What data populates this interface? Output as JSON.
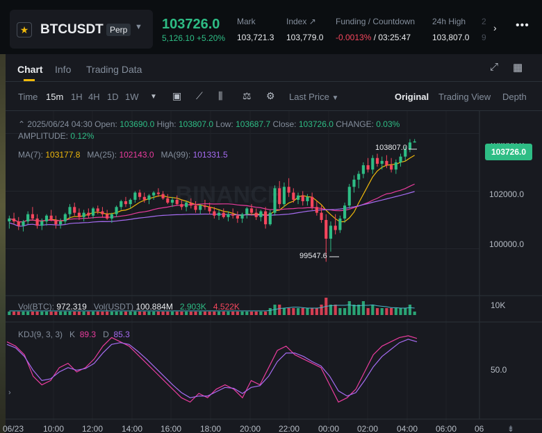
{
  "header": {
    "symbol": "BTCUSDT",
    "contract_type": "Perp",
    "last_price": "103726.0",
    "change": "5,126.10 +5.20%",
    "stats": [
      {
        "label": "Mark",
        "value": "103,721.3"
      },
      {
        "label": "Index ↗",
        "value": "103,779.0"
      },
      {
        "label": "Funding / Countdown",
        "value_funding": "-0.0013%",
        "value_countdown": "/ 03:25:47"
      },
      {
        "label": "24h High",
        "value": "103,807.0"
      }
    ],
    "truncated_stat_label": "2",
    "truncated_stat_value": "9"
  },
  "tabs": [
    "Chart",
    "Info",
    "Trading Data"
  ],
  "toolbar": {
    "time_label": "Time",
    "intervals": [
      "15m",
      "1H",
      "4H",
      "1D",
      "1W"
    ],
    "active_interval": "15m",
    "price_type": "Last Price",
    "views": [
      "Original",
      "Trading View",
      "Depth"
    ],
    "active_view": "Original"
  },
  "ohlc": {
    "datetime": "2025/06/24 04:30",
    "open_label": "Open:",
    "open": "103690.0",
    "high_label": "High:",
    "high": "103807.0",
    "low_label": "Low:",
    "low": "103687.7",
    "close_label": "Close:",
    "close": "103726.0",
    "change_label": "CHANGE:",
    "change": "0.03%",
    "amplitude_label": "AMPLITUDE:",
    "amplitude": "0.12%"
  },
  "ma": {
    "ma7_label": "MA(7):",
    "ma7": "103177.8",
    "ma25_label": "MA(25):",
    "ma25": "102143.0",
    "ma99_label": "MA(99):",
    "ma99": "101331.5"
  },
  "volume": {
    "btc_label": "Vol(BTC):",
    "btc": "972.319",
    "usdt_label": "Vol(USDT)",
    "usdt": "100.884M",
    "v1": "2.903K",
    "v2": "4.522K",
    "axis": "10K"
  },
  "kdj": {
    "label": "KDJ(9, 3, 3)",
    "k_label": "K",
    "k": "89.3",
    "d_label": "D",
    "d": "85.3",
    "axis": "50.0"
  },
  "price_axis": [
    "104000.0",
    "102000.0",
    "100000.0"
  ],
  "current_price_tag": "103726.0",
  "high_marker": "103807.0",
  "low_marker": "99547.6",
  "time_axis": [
    "06/23",
    "10:00",
    "12:00",
    "14:00",
    "16:00",
    "18:00",
    "20:00",
    "22:00",
    "00:00",
    "02:00",
    "04:00",
    "06:00",
    "06"
  ],
  "watermark": "BINANCE",
  "colors": {
    "up": "#2ebd85",
    "down": "#f6465d",
    "ma7": "#f0b90b",
    "ma25": "#ea3c9e",
    "ma99": "#a66cf2",
    "accent": "#f0b90b"
  },
  "chart_data": {
    "type": "candlestick",
    "interval": "15m",
    "ylim": [
      99000,
      104300
    ],
    "candles": [
      [
        100950,
        101150,
        100700,
        101050
      ],
      [
        101050,
        101250,
        100850,
        100950
      ],
      [
        100950,
        101100,
        100650,
        100800
      ],
      [
        100800,
        101000,
        100600,
        100950
      ],
      [
        100950,
        101300,
        100850,
        101200
      ],
      [
        101200,
        101450,
        101000,
        101050
      ],
      [
        101050,
        101200,
        100700,
        100800
      ],
      [
        100800,
        101050,
        100650,
        100950
      ],
      [
        100950,
        101200,
        100800,
        101150
      ],
      [
        101150,
        101350,
        100950,
        101000
      ],
      [
        101000,
        101150,
        100700,
        100850
      ],
      [
        100850,
        101050,
        100700,
        100950
      ],
      [
        100950,
        101250,
        100850,
        101200
      ],
      [
        101200,
        101550,
        101050,
        101450
      ],
      [
        101450,
        101600,
        101150,
        101250
      ],
      [
        101250,
        101400,
        101000,
        101100
      ],
      [
        101100,
        101350,
        100950,
        101250
      ],
      [
        101250,
        101400,
        101050,
        101150
      ],
      [
        101150,
        101450,
        101050,
        101400
      ],
      [
        101400,
        101500,
        101200,
        101300
      ],
      [
        101300,
        101450,
        101100,
        101200
      ],
      [
        101200,
        101350,
        101000,
        101050
      ],
      [
        101050,
        101250,
        100900,
        101200
      ],
      [
        101200,
        101500,
        101100,
        101450
      ],
      [
        101450,
        101700,
        101350,
        101650
      ],
      [
        101650,
        101800,
        101450,
        101550
      ],
      [
        101550,
        101750,
        101400,
        101700
      ],
      [
        101700,
        102000,
        101600,
        101950
      ],
      [
        101950,
        102050,
        101700,
        101800
      ],
      [
        101800,
        101950,
        101600,
        101700
      ],
      [
        101700,
        101900,
        101550,
        101850
      ],
      [
        101850,
        102000,
        101700,
        101950
      ],
      [
        101950,
        102100,
        101800,
        101900
      ],
      [
        101900,
        102000,
        101700,
        101750
      ],
      [
        101750,
        101900,
        101550,
        101600
      ],
      [
        101600,
        101800,
        101450,
        101700
      ],
      [
        101700,
        101850,
        101500,
        101550
      ],
      [
        101550,
        101700,
        101350,
        101450
      ],
      [
        101450,
        101650,
        101300,
        101600
      ],
      [
        101600,
        101750,
        101400,
        101500
      ],
      [
        101500,
        101650,
        101250,
        101350
      ],
      [
        101350,
        101550,
        101200,
        101500
      ],
      [
        101500,
        101700,
        101350,
        101450
      ],
      [
        101450,
        101600,
        101200,
        101300
      ],
      [
        101300,
        101450,
        101050,
        101150
      ],
      [
        101150,
        101350,
        101000,
        101250
      ],
      [
        101250,
        101400,
        101050,
        101100
      ],
      [
        101100,
        101300,
        100950,
        101200
      ],
      [
        101200,
        101400,
        101050,
        101150
      ],
      [
        101150,
        101300,
        100900,
        101050
      ],
      [
        101050,
        101250,
        100900,
        101200
      ],
      [
        101200,
        101450,
        101050,
        101400
      ],
      [
        101400,
        101550,
        101150,
        101250
      ],
      [
        101250,
        101400,
        101000,
        101100
      ],
      [
        101100,
        101350,
        100950,
        101300
      ],
      [
        101300,
        101450,
        100700,
        100850
      ],
      [
        100850,
        101350,
        100800,
        101250
      ],
      [
        101250,
        102200,
        101150,
        102100
      ],
      [
        102100,
        102350,
        101400,
        101550
      ],
      [
        101550,
        102300,
        101450,
        102150
      ],
      [
        102150,
        102450,
        101800,
        101950
      ],
      [
        101950,
        102100,
        101600,
        101700
      ],
      [
        101700,
        101950,
        101550,
        101850
      ],
      [
        101850,
        102000,
        101500,
        101650
      ],
      [
        101650,
        101900,
        101500,
        101800
      ],
      [
        101800,
        101950,
        101350,
        101450
      ],
      [
        101450,
        101650,
        101150,
        101250
      ],
      [
        101250,
        101500,
        100900,
        101000
      ],
      [
        101000,
        101200,
        99548,
        100350
      ],
      [
        100350,
        100950,
        99900,
        100800
      ],
      [
        100800,
        101200,
        100500,
        100650
      ],
      [
        100650,
        101150,
        100550,
        101050
      ],
      [
        101050,
        101600,
        100900,
        101500
      ],
      [
        101500,
        102250,
        101400,
        102150
      ],
      [
        102150,
        102550,
        101950,
        102400
      ],
      [
        102400,
        102700,
        102100,
        102600
      ],
      [
        102600,
        103000,
        102450,
        102900
      ],
      [
        102900,
        103150,
        102650,
        102750
      ],
      [
        102750,
        103250,
        102600,
        103150
      ],
      [
        103150,
        103300,
        102850,
        102950
      ],
      [
        102950,
        103200,
        102750,
        103050
      ],
      [
        103050,
        103250,
        102800,
        102900
      ],
      [
        102900,
        103150,
        102650,
        102750
      ],
      [
        102750,
        103100,
        102600,
        103000
      ],
      [
        103000,
        103300,
        102850,
        103200
      ],
      [
        103200,
        103550,
        103050,
        103450
      ],
      [
        103450,
        103807,
        103350,
        103690
      ],
      [
        103690,
        103807,
        103688,
        103726
      ]
    ],
    "ma7": "103177.8",
    "ma25": "102143.0",
    "ma99": "101331.5",
    "volume": [
      1,
      1,
      1,
      1,
      1,
      1,
      1,
      1,
      1,
      1,
      1,
      1,
      1,
      1,
      1,
      1,
      1,
      1,
      1,
      1,
      1,
      1,
      1,
      1,
      1,
      1,
      1,
      1,
      1,
      1,
      1,
      1,
      1,
      1,
      1,
      1,
      1,
      1,
      1,
      1,
      1,
      1,
      1,
      1,
      1,
      1,
      1,
      1,
      1,
      1,
      1,
      1,
      1,
      1,
      1,
      1,
      2,
      3,
      3,
      2,
      2,
      2,
      2,
      2,
      2,
      2,
      2,
      3,
      5,
      3,
      3,
      2,
      2,
      4,
      3,
      3,
      4,
      2,
      3,
      2,
      2,
      2,
      2,
      2,
      2,
      2,
      3,
      1
    ],
    "kdj_k": [
      85,
      80,
      70,
      45,
      35,
      40,
      55,
      60,
      50,
      55,
      65,
      80,
      90,
      85,
      80,
      70,
      60,
      50,
      40,
      30,
      20,
      15,
      25,
      20,
      30,
      35,
      30,
      20,
      40,
      35,
      55,
      75,
      80,
      70,
      65,
      60,
      55,
      35,
      15,
      20,
      30,
      50,
      70,
      80,
      85,
      90,
      92,
      89
    ],
    "kdj_d": [
      82,
      78,
      68,
      52,
      40,
      42,
      50,
      55,
      52,
      54,
      60,
      72,
      82,
      84,
      82,
      74,
      65,
      55,
      45,
      35,
      26,
      20,
      22,
      22,
      27,
      32,
      31,
      25,
      32,
      34,
      45,
      62,
      72,
      72,
      68,
      62,
      57,
      45,
      28,
      22,
      26,
      40,
      56,
      68,
      76,
      84,
      88,
      85
    ]
  }
}
